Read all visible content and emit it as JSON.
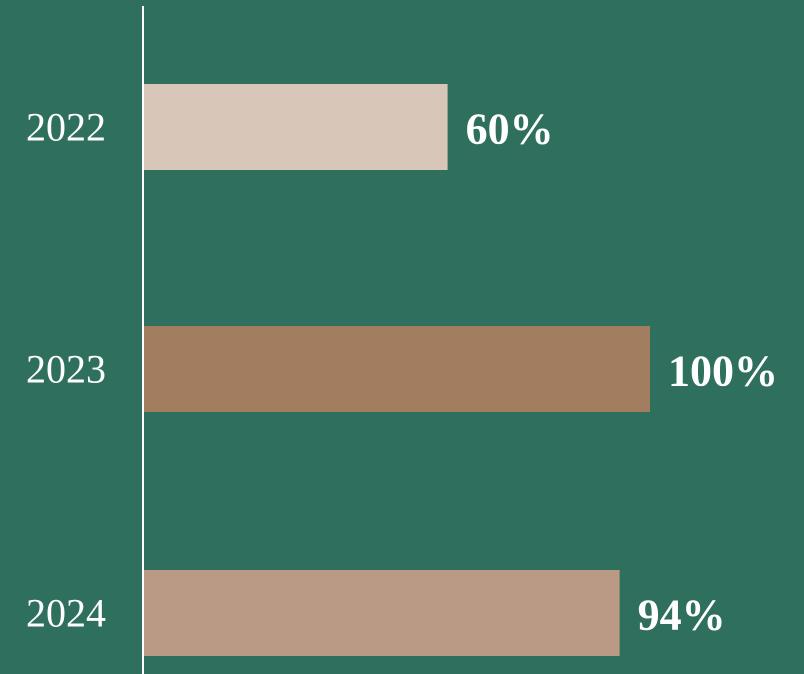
{
  "background_color": "#2e6f5e",
  "axis_color": "#ffffff",
  "chart_data": {
    "type": "bar",
    "orientation": "horizontal",
    "categories": [
      "2022",
      "2023",
      "2024"
    ],
    "values": [
      60,
      100,
      94
    ],
    "value_labels": [
      "60%",
      "100%",
      "94%"
    ],
    "bar_colors": [
      "#d8c6b9",
      "#a37d60",
      "#ba9a85"
    ],
    "xlim": [
      0,
      100
    ],
    "title": "",
    "xlabel": "",
    "ylabel": "",
    "grid": false,
    "legend": "none"
  }
}
